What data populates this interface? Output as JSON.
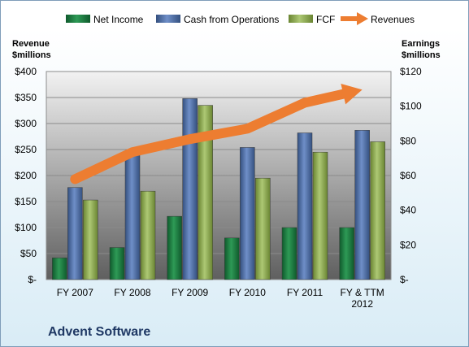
{
  "chart_data": {
    "type": "bar",
    "categories": [
      [
        "FY 2007"
      ],
      [
        "FY 2008"
      ],
      [
        "FY 2009"
      ],
      [
        "FY 2010"
      ],
      [
        "FY 2011"
      ],
      [
        "FY & TTM",
        "2012"
      ]
    ],
    "series": [
      {
        "name": "Net Income",
        "axis": "right",
        "color": "#1e7a42",
        "values": [
          12.5,
          18.5,
          36.5,
          24,
          30,
          30
        ]
      },
      {
        "name": "Cash from Operations",
        "axis": "left",
        "color": "#4f6fa8",
        "values": [
          177,
          245,
          348,
          254,
          282,
          287
        ]
      },
      {
        "name": "FCF",
        "axis": "left",
        "color": "#8faa52",
        "values": [
          153,
          170,
          335,
          195,
          245,
          265
        ]
      }
    ],
    "line_series": {
      "name": "Revenues",
      "axis": "left",
      "color": "#ed7d31",
      "values": [
        193,
        245,
        270,
        290,
        340,
        365
      ]
    },
    "left_axis": {
      "title": [
        "Revenue",
        "$millions"
      ],
      "ticks": [
        "$-",
        "$50",
        "$100",
        "$150",
        "$200",
        "$250",
        "$300",
        "$350",
        "$400"
      ],
      "ylim": [
        0,
        400
      ]
    },
    "right_axis": {
      "title": [
        "Earnings",
        "$millions"
      ],
      "ticks": [
        "$-",
        "$20",
        "$40",
        "$60",
        "$80",
        "$100",
        "$120"
      ],
      "ylim": [
        0,
        120
      ]
    },
    "legend": [
      "Net Income",
      "Cash from Operations",
      "FCF",
      "Revenues"
    ],
    "legend_position": "top",
    "company": "Advent Software"
  }
}
